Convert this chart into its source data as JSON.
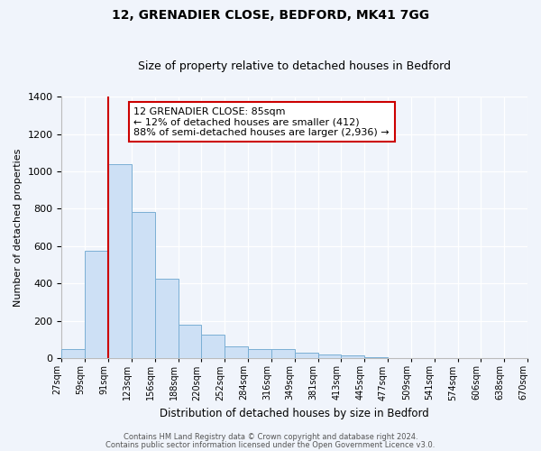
{
  "title1": "12, GRENADIER CLOSE, BEDFORD, MK41 7GG",
  "title2": "Size of property relative to detached houses in Bedford",
  "xlabel": "Distribution of detached houses by size in Bedford",
  "ylabel": "Number of detached properties",
  "bin_labels": [
    "27sqm",
    "59sqm",
    "91sqm",
    "123sqm",
    "156sqm",
    "188sqm",
    "220sqm",
    "252sqm",
    "284sqm",
    "316sqm",
    "349sqm",
    "381sqm",
    "413sqm",
    "445sqm",
    "477sqm",
    "509sqm",
    "541sqm",
    "574sqm",
    "606sqm",
    "638sqm",
    "670sqm"
  ],
  "bar_heights": [
    50,
    575,
    1040,
    785,
    425,
    180,
    125,
    65,
    50,
    50,
    30,
    20,
    15,
    5,
    0,
    0,
    0,
    0,
    0,
    0
  ],
  "bar_color": "#cde0f5",
  "bar_edgecolor": "#7aafd4",
  "vline_x": 2,
  "vline_color": "#cc0000",
  "ylim": [
    0,
    1400
  ],
  "yticks": [
    0,
    200,
    400,
    600,
    800,
    1000,
    1200,
    1400
  ],
  "annotation_text": "12 GRENADIER CLOSE: 85sqm\n← 12% of detached houses are smaller (412)\n88% of semi-detached houses are larger (2,936) →",
  "annotation_box_edgecolor": "#cc0000",
  "footer1": "Contains HM Land Registry data © Crown copyright and database right 2024.",
  "footer2": "Contains public sector information licensed under the Open Government Licence v3.0.",
  "bg_color": "#f0f4fb",
  "plot_bg_color": "#f0f4fb"
}
